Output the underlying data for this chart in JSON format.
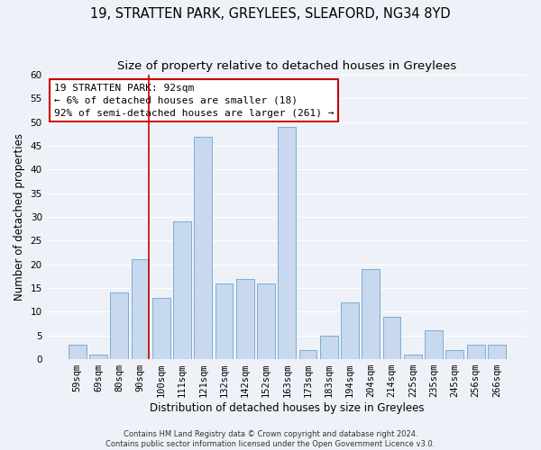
{
  "title": "19, STRATTEN PARK, GREYLEES, SLEAFORD, NG34 8YD",
  "subtitle": "Size of property relative to detached houses in Greylees",
  "xlabel": "Distribution of detached houses by size in Greylees",
  "ylabel": "Number of detached properties",
  "bar_labels": [
    "59sqm",
    "69sqm",
    "80sqm",
    "90sqm",
    "100sqm",
    "111sqm",
    "121sqm",
    "132sqm",
    "142sqm",
    "152sqm",
    "163sqm",
    "173sqm",
    "183sqm",
    "194sqm",
    "204sqm",
    "214sqm",
    "225sqm",
    "235sqm",
    "245sqm",
    "256sqm",
    "266sqm"
  ],
  "bar_values": [
    3,
    1,
    14,
    21,
    13,
    29,
    47,
    16,
    17,
    16,
    49,
    2,
    5,
    12,
    19,
    9,
    1,
    6,
    2,
    3,
    3
  ],
  "bar_color": "#c8d8ee",
  "bar_edge_color": "#7aaed4",
  "background_color": "#eef2f8",
  "grid_color": "#ffffff",
  "ylim": [
    0,
    60
  ],
  "yticks": [
    0,
    5,
    10,
    15,
    20,
    25,
    30,
    35,
    40,
    45,
    50,
    55,
    60
  ],
  "vline_x_index": 3,
  "vline_color": "#cc0000",
  "annotation_title": "19 STRATTEN PARK: 92sqm",
  "annotation_line1": "← 6% of detached houses are smaller (18)",
  "annotation_line2": "92% of semi-detached houses are larger (261) →",
  "annotation_box_facecolor": "#ffffff",
  "annotation_box_edge_color": "#cc0000",
  "footer_line1": "Contains HM Land Registry data © Crown copyright and database right 2024.",
  "footer_line2": "Contains public sector information licensed under the Open Government Licence v3.0.",
  "title_fontsize": 10.5,
  "subtitle_fontsize": 9.5,
  "axis_label_fontsize": 8.5,
  "tick_fontsize": 7.5,
  "annotation_fontsize": 8,
  "footer_fontsize": 6
}
